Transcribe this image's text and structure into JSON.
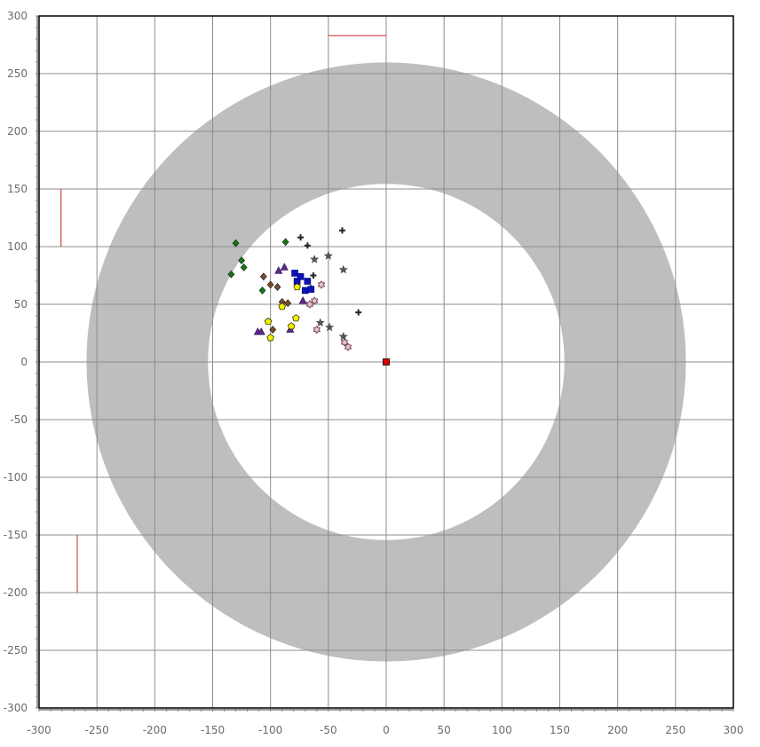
{
  "chart_data": {
    "type": "scatter",
    "xlim": [
      -300,
      300
    ],
    "ylim": [
      -300,
      300
    ],
    "x_ticks": [
      -300,
      -250,
      -200,
      -150,
      -100,
      -50,
      0,
      50,
      100,
      150,
      200,
      250,
      300
    ],
    "y_ticks": [
      300,
      250,
      200,
      150,
      100,
      50,
      0,
      -50,
      -100,
      -150,
      -200,
      -250,
      -300
    ],
    "grid": true,
    "ring": {
      "inner_radius": 154,
      "outer_radius": 259,
      "color": "#bebebe"
    },
    "origin_marker": {
      "x": 0,
      "y": 0,
      "color": "#e00000"
    },
    "reference_lines": [
      {
        "x1": -50,
        "y1": 283,
        "x2": 0,
        "y2": 283,
        "color": "#cc2222"
      },
      {
        "x1": -281,
        "y1": 150,
        "x2": -281,
        "y2": 100,
        "color": "#cc2222"
      },
      {
        "x1": -267,
        "y1": -150,
        "x2": -267,
        "y2": -200,
        "color": "#cc2222"
      }
    ],
    "series": [
      {
        "marker": "plus",
        "color": "#222222",
        "points": [
          [
            -74,
            108
          ],
          [
            -68,
            101
          ],
          [
            -38,
            114
          ],
          [
            -63,
            75
          ],
          [
            -24,
            43
          ],
          [
            -65,
            64
          ]
        ]
      },
      {
        "marker": "star",
        "color": "#555555",
        "points": [
          [
            -50,
            92
          ],
          [
            -62,
            89
          ],
          [
            -37,
            80
          ],
          [
            -57,
            34
          ],
          [
            -49,
            30
          ],
          [
            -37,
            22
          ]
        ]
      },
      {
        "marker": "square",
        "color": "#0b12b8",
        "points": [
          [
            -79,
            77
          ],
          [
            -77,
            70
          ],
          [
            -74,
            74
          ],
          [
            -68,
            70
          ],
          [
            -70,
            62
          ],
          [
            -65,
            63
          ]
        ]
      },
      {
        "marker": "diamond",
        "color": "#127812",
        "points": [
          [
            -130,
            103
          ],
          [
            -87,
            104
          ],
          [
            -125,
            88
          ],
          [
            -123,
            82
          ],
          [
            -134,
            76
          ],
          [
            -107,
            62
          ]
        ]
      },
      {
        "marker": "triangle",
        "color": "#5a2a8a",
        "points": [
          [
            -93,
            79
          ],
          [
            -88,
            82
          ],
          [
            -72,
            53
          ],
          [
            -111,
            26
          ],
          [
            -108,
            26
          ],
          [
            -83,
            28
          ]
        ]
      },
      {
        "marker": "diamond",
        "color": "#7a4a2a",
        "points": [
          [
            -106,
            74
          ],
          [
            -100,
            67
          ],
          [
            -94,
            65
          ],
          [
            -90,
            52
          ],
          [
            -85,
            51
          ],
          [
            -98,
            28
          ]
        ]
      },
      {
        "marker": "pentagon",
        "color": "#f2f200",
        "points": [
          [
            -77,
            65
          ],
          [
            -90,
            48
          ],
          [
            -102,
            35
          ],
          [
            -78,
            38
          ],
          [
            -82,
            31
          ],
          [
            -100,
            21
          ]
        ]
      },
      {
        "marker": "flower",
        "color": "#e8c0c8",
        "points": [
          [
            -56,
            67
          ],
          [
            -62,
            53
          ],
          [
            -66,
            50
          ],
          [
            -60,
            28
          ],
          [
            -36,
            17
          ],
          [
            -33,
            13
          ]
        ]
      }
    ]
  }
}
